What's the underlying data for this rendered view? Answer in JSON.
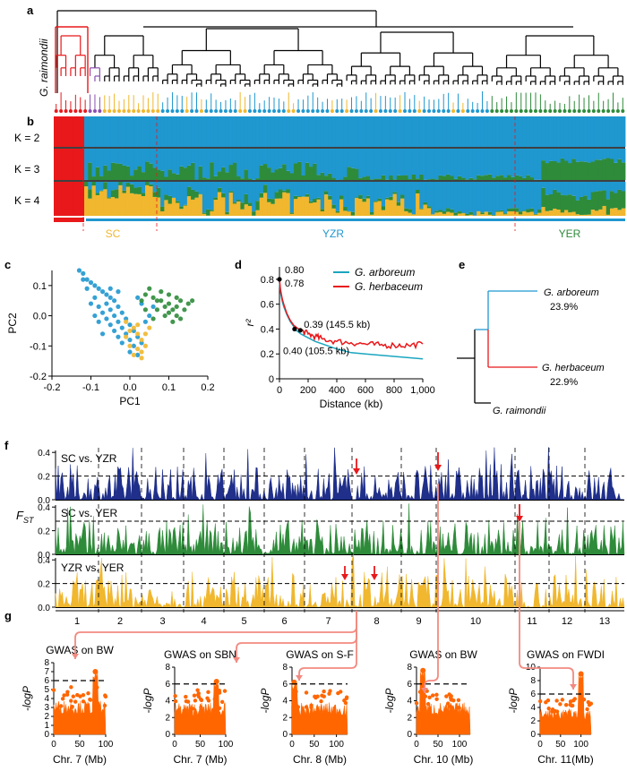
{
  "panel_labels": {
    "a": "a",
    "b": "b",
    "c": "c",
    "d": "d",
    "e": "e",
    "f": "f",
    "g": "g"
  },
  "colors": {
    "red": "#e8181b",
    "blue": "#1f97cf",
    "green": "#2e8b3a",
    "yellow": "#f0b72f",
    "orange": "#ff6600",
    "navy": "#1f2f8a",
    "teal": "#1aa6c0",
    "purple": "#8a4fb0",
    "salmon": "#f28a80"
  },
  "panel_a": {
    "outgroup_label": "G. raimondii"
  },
  "panel_b": {
    "k_labels": [
      "K = 2",
      "K = 3",
      "K = 4"
    ],
    "group_labels": [
      "SC",
      "YZR",
      "YER"
    ]
  },
  "panel_e": {
    "taxa": [
      "G. arboreum",
      "G. herbaceum",
      "G. raimondii"
    ],
    "percents": [
      "23.9%",
      "22.9%"
    ]
  },
  "panel_f": {
    "ylabel": "F",
    "ylabel_sub": "ST",
    "track_labels": [
      "SC vs. YZR",
      "SC vs. YER",
      "YZR vs. YER"
    ],
    "tick_labels": [
      "0.0",
      "0.2",
      "0.4"
    ],
    "chromosomes": [
      "1",
      "2",
      "3",
      "4",
      "5",
      "6",
      "7",
      "8",
      "9",
      "10",
      "11",
      "12",
      "13"
    ]
  },
  "chart_data": [
    {
      "type": "scatter",
      "panel": "c",
      "xlabel": "PC1",
      "ylabel": "PC2",
      "xlim": [
        -0.2,
        0.2
      ],
      "ylim": [
        -0.2,
        0.15
      ],
      "xticks": [
        "-0.2",
        "-0.1",
        "0.0",
        "0.1",
        "0.2"
      ],
      "yticks": [
        "-0.2",
        "-0.1",
        "0.0",
        "0.1"
      ],
      "series": [
        {
          "color": "blue",
          "points": [
            [
              -0.13,
              0.15
            ],
            [
              -0.12,
              0.14
            ],
            [
              -0.11,
              0.12
            ],
            [
              -0.1,
              0.11
            ],
            [
              -0.09,
              0.1
            ],
            [
              -0.08,
              0.09
            ],
            [
              -0.07,
              0.08
            ],
            [
              -0.06,
              0.07
            ],
            [
              -0.05,
              0.06
            ],
            [
              -0.04,
              0.05
            ],
            [
              -0.06,
              0.04
            ],
            [
              -0.08,
              0.03
            ],
            [
              -0.03,
              0.03
            ],
            [
              -0.05,
              0.02
            ],
            [
              -0.07,
              0.01
            ],
            [
              -0.02,
              0.01
            ],
            [
              -0.04,
              0.0
            ],
            [
              -0.06,
              -0.01
            ],
            [
              -0.01,
              -0.01
            ],
            [
              -0.03,
              -0.02
            ],
            [
              -0.05,
              -0.03
            ],
            [
              0.0,
              -0.03
            ],
            [
              -0.02,
              -0.04
            ],
            [
              -0.04,
              -0.05
            ],
            [
              -0.01,
              -0.06
            ],
            [
              0.01,
              -0.05
            ],
            [
              -0.03,
              -0.07
            ],
            [
              0.0,
              -0.08
            ],
            [
              0.02,
              -0.07
            ],
            [
              -0.02,
              -0.09
            ],
            [
              0.01,
              -0.1
            ],
            [
              0.03,
              -0.09
            ],
            [
              0.0,
              -0.12
            ],
            [
              0.02,
              -0.13
            ],
            [
              -0.09,
              0.06
            ],
            [
              -0.1,
              0.04
            ],
            [
              -0.08,
              -0.02
            ],
            [
              -0.07,
              -0.06
            ],
            [
              0.04,
              -0.02
            ],
            [
              0.05,
              0.0
            ],
            [
              -0.11,
              0.09
            ],
            [
              -0.12,
              0.12
            ],
            [
              0.03,
              0.04
            ],
            [
              0.02,
              0.06
            ],
            [
              -0.05,
              0.09
            ],
            [
              -0.03,
              0.08
            ],
            [
              0.06,
              0.03
            ],
            [
              -0.09,
              0.0
            ]
          ]
        },
        {
          "color": "green",
          "points": [
            [
              0.04,
              0.07
            ],
            [
              0.06,
              0.06
            ],
            [
              0.08,
              0.05
            ],
            [
              0.1,
              0.04
            ],
            [
              0.12,
              0.03
            ],
            [
              0.14,
              0.02
            ],
            [
              0.16,
              0.05
            ],
            [
              0.07,
              0.02
            ],
            [
              0.09,
              0.0
            ],
            [
              0.11,
              -0.02
            ],
            [
              0.13,
              -0.01
            ],
            [
              0.05,
              0.09
            ],
            [
              0.08,
              0.08
            ],
            [
              0.1,
              0.07
            ],
            [
              0.12,
              0.06
            ],
            [
              0.15,
              0.04
            ],
            [
              0.06,
              -0.01
            ],
            [
              0.09,
              0.03
            ],
            [
              0.11,
              0.02
            ],
            [
              0.13,
              0.05
            ],
            [
              0.04,
              0.02
            ],
            [
              0.07,
              0.05
            ],
            [
              0.1,
              0.01
            ],
            [
              0.03,
              0.05
            ],
            [
              0.12,
              0.0
            ]
          ]
        },
        {
          "color": "yellow",
          "points": [
            [
              -0.01,
              -0.02
            ],
            [
              0.01,
              -0.04
            ],
            [
              0.02,
              -0.06
            ],
            [
              0.03,
              -0.08
            ],
            [
              0.0,
              -0.1
            ],
            [
              0.02,
              -0.11
            ],
            [
              0.04,
              -0.1
            ],
            [
              0.01,
              -0.13
            ],
            [
              0.03,
              -0.14
            ],
            [
              -0.01,
              -0.07
            ],
            [
              0.02,
              -0.03
            ],
            [
              0.04,
              -0.06
            ],
            [
              0.05,
              -0.04
            ],
            [
              0.0,
              -0.05
            ],
            [
              0.03,
              -0.12
            ]
          ]
        }
      ]
    },
    {
      "type": "line",
      "panel": "d",
      "xlabel": "Distance (kb)",
      "ylabel": "r²",
      "xlim": [
        0,
        1000
      ],
      "ylim": [
        0,
        0.9
      ],
      "xticks": [
        "0",
        "200",
        "400",
        "600",
        "800",
        "1,000"
      ],
      "yticks": [
        "0",
        "0.2",
        "0.4",
        "0.6",
        "0.8"
      ],
      "series": [
        {
          "name": "G. arboreum",
          "color": "teal",
          "x": [
            0,
            5,
            10,
            20,
            30,
            50,
            75,
            100,
            105.5,
            150,
            200,
            250,
            300,
            400,
            500,
            600,
            700,
            800,
            900,
            1000
          ],
          "y": [
            0.78,
            0.72,
            0.68,
            0.62,
            0.58,
            0.52,
            0.46,
            0.42,
            0.4,
            0.36,
            0.33,
            0.3,
            0.28,
            0.24,
            0.21,
            0.2,
            0.19,
            0.18,
            0.17,
            0.16
          ]
        },
        {
          "name": "G. herbaceum",
          "color": "red",
          "x": [
            0,
            5,
            10,
            20,
            30,
            50,
            75,
            100,
            145.5,
            200,
            250,
            300,
            400,
            500,
            600,
            700,
            800,
            900,
            1000
          ],
          "y": [
            0.8,
            0.74,
            0.7,
            0.64,
            0.6,
            0.53,
            0.47,
            0.43,
            0.39,
            0.36,
            0.34,
            0.32,
            0.3,
            0.29,
            0.28,
            0.27,
            0.27,
            0.27,
            0.28
          ]
        }
      ],
      "annotations": [
        "0.80",
        "0.78",
        "0.39 (145.5 kb)",
        "0.40 (105.5 kb)"
      ]
    },
    {
      "type": "bar",
      "panel": "g1",
      "title": "GWAS on BW",
      "xlabel": "Chr. 7 (Mb)",
      "ylabel": "-logP",
      "xlim": [
        0,
        100
      ],
      "ylim": [
        0,
        8
      ],
      "xticks": [
        "0",
        "50",
        "100"
      ],
      "yticks": [
        "0",
        "1",
        "2",
        "3",
        "4",
        "5",
        "6",
        "7",
        "8"
      ],
      "threshold": 6,
      "peak": [
        80,
        7.0
      ]
    },
    {
      "type": "bar",
      "panel": "g2",
      "title": "GWAS on SBN",
      "xlabel": "Chr. 7 (Mb)",
      "ylabel": "-logP",
      "xlim": [
        0,
        100
      ],
      "ylim": [
        0,
        8
      ],
      "xticks": [
        "0",
        "50",
        "100"
      ],
      "yticks": [
        "0",
        "2",
        "4",
        "6",
        "8"
      ],
      "threshold": 6,
      "peak": [
        82,
        6.3
      ]
    },
    {
      "type": "bar",
      "panel": "g3",
      "title": "GWAS on S-F",
      "xlabel": "Chr. 8 (Mb)",
      "ylabel": "-logP",
      "xlim": [
        0,
        125
      ],
      "ylim": [
        0,
        8
      ],
      "xticks": [
        "0",
        "50",
        "100"
      ],
      "yticks": [
        "0",
        "2",
        "4",
        "6",
        "8"
      ],
      "threshold": 6,
      "peak": [
        5,
        6.2
      ]
    },
    {
      "type": "bar",
      "panel": "g4",
      "title": "GWAS on BW",
      "xlabel": "Chr. 10 (Mb)",
      "ylabel": "-logP",
      "xlim": [
        0,
        125
      ],
      "ylim": [
        0,
        8
      ],
      "xticks": [
        "0",
        "50",
        "100"
      ],
      "yticks": [
        "0",
        "2",
        "4",
        "6",
        "8"
      ],
      "threshold": 6,
      "peak": [
        15,
        7.6
      ]
    },
    {
      "type": "bar",
      "panel": "g5",
      "title": "GWAS on FWDI",
      "xlabel": "Chr. 11(Mb)",
      "ylabel": "-logP",
      "xlim": [
        0,
        125
      ],
      "ylim": [
        0,
        10
      ],
      "xticks": [
        "0",
        "50",
        "100"
      ],
      "yticks": [
        "0",
        "2",
        "4",
        "6",
        "8",
        "10"
      ],
      "threshold": 6,
      "peak": [
        100,
        9.0
      ]
    }
  ]
}
